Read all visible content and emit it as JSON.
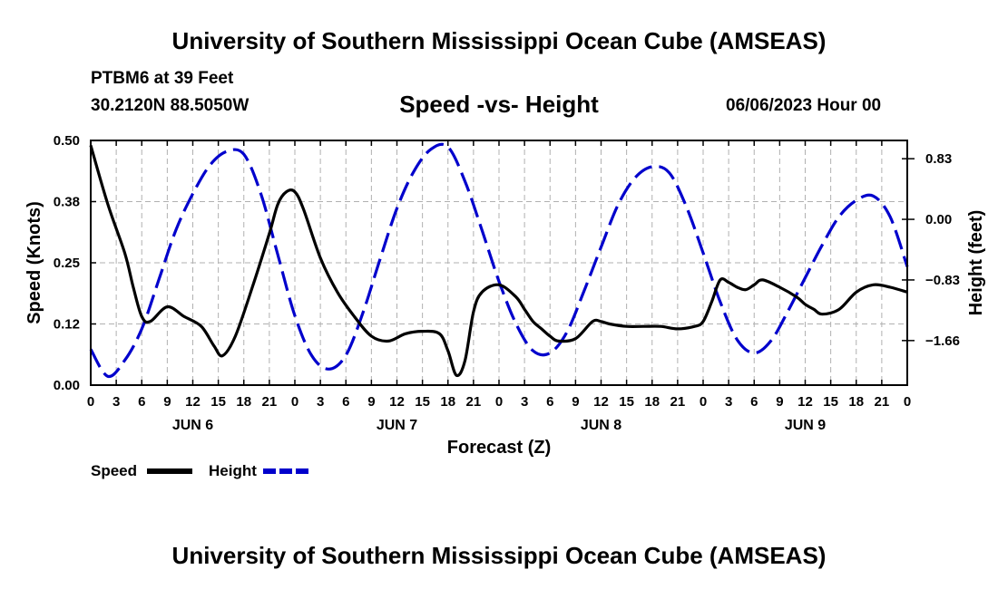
{
  "title": "University of Southern Mississippi Ocean Cube (AMSEAS)",
  "footer_title": "University of Southern Mississippi Ocean Cube (AMSEAS)",
  "station": "PTBM6 at 39 Feet",
  "coords": "30.2120N  88.5050W",
  "subtitle": "Speed -vs- Height",
  "datetime": "06/06/2023 Hour 00",
  "chart_data": {
    "type": "line",
    "title": "Speed -vs- Height",
    "xlabel": "Forecast (Z)",
    "ylabel": "Speed (Knots)",
    "y2label": "Height (feet)",
    "xlim": [
      0,
      96
    ],
    "ylim": [
      0,
      0.5
    ],
    "y2lim": [
      -2.27,
      1.08
    ],
    "x_ticks": [
      0,
      3,
      6,
      9,
      12,
      15,
      18,
      21,
      24,
      27,
      30,
      33,
      36,
      39,
      42,
      45,
      48,
      51,
      54,
      57,
      60,
      63,
      66,
      69,
      72,
      75,
      78,
      81,
      84,
      87,
      90,
      93,
      96
    ],
    "x_tick_labels": [
      "0",
      "3",
      "6",
      "9",
      "12",
      "15",
      "18",
      "21",
      "0",
      "3",
      "6",
      "9",
      "12",
      "15",
      "18",
      "21",
      "0",
      "3",
      "6",
      "9",
      "12",
      "15",
      "18",
      "21",
      "0",
      "3",
      "6",
      "9",
      "12",
      "15",
      "18",
      "21",
      "0"
    ],
    "y_ticks": [
      0,
      0.125,
      0.25,
      0.375,
      0.5
    ],
    "y_tick_labels": [
      "0.00",
      "0.12",
      "0.25",
      "0.38",
      "0.50"
    ],
    "y2_ticks": [
      -1.66,
      -0.83,
      0.0,
      0.83
    ],
    "y2_tick_labels": [
      "−1.66",
      "−0.83",
      "0.00",
      "0.83"
    ],
    "day_labels": [
      {
        "x": 12,
        "label": "JUN 6"
      },
      {
        "x": 36,
        "label": "JUN 7"
      },
      {
        "x": 60,
        "label": "JUN 8"
      },
      {
        "x": 84,
        "label": "JUN 9"
      }
    ],
    "series": [
      {
        "name": "Speed",
        "axis": "left",
        "color": "#000000",
        "style": "solid",
        "x": [
          0,
          2,
          4,
          5,
          6,
          7,
          9,
          11,
          13,
          14.5,
          15.5,
          17,
          19,
          21,
          22,
          23,
          24,
          25,
          27,
          29,
          31,
          33,
          35,
          37,
          39,
          41,
          42,
          43,
          44,
          45,
          46,
          48,
          50,
          51,
          52,
          53,
          54,
          55,
          57,
          59,
          60,
          61,
          63,
          65,
          67,
          69,
          71,
          72,
          73,
          74,
          75,
          76,
          77,
          78,
          79,
          81,
          83,
          84,
          85,
          86,
          88,
          90,
          92,
          94,
          96
        ],
        "values": [
          0.49,
          0.37,
          0.27,
          0.2,
          0.14,
          0.13,
          0.16,
          0.14,
          0.12,
          0.08,
          0.06,
          0.1,
          0.2,
          0.31,
          0.37,
          0.395,
          0.395,
          0.36,
          0.26,
          0.19,
          0.14,
          0.1,
          0.09,
          0.105,
          0.11,
          0.105,
          0.07,
          0.02,
          0.05,
          0.15,
          0.19,
          0.205,
          0.18,
          0.155,
          0.13,
          0.115,
          0.1,
          0.09,
          0.095,
          0.13,
          0.13,
          0.125,
          0.12,
          0.12,
          0.12,
          0.115,
          0.12,
          0.13,
          0.17,
          0.215,
          0.21,
          0.2,
          0.195,
          0.205,
          0.215,
          0.2,
          0.18,
          0.165,
          0.155,
          0.145,
          0.155,
          0.19,
          0.205,
          0.2,
          0.19
        ]
      },
      {
        "name": "Height",
        "axis": "right",
        "color": "#0000cc",
        "style": "dashed",
        "x": [
          0,
          2,
          4,
          6,
          8,
          10,
          12,
          14,
          16,
          18,
          20,
          22,
          24,
          26,
          28,
          30,
          32,
          34,
          36,
          38,
          40,
          42,
          44,
          46,
          48,
          50,
          52,
          54,
          56,
          58,
          60,
          62,
          64,
          66,
          68,
          70,
          72,
          74,
          76,
          78,
          80,
          82,
          84,
          86,
          88,
          90,
          92,
          94,
          96
        ],
        "values": [
          -1.78,
          -2.15,
          -1.93,
          -1.5,
          -0.83,
          -0.15,
          0.35,
          0.74,
          0.93,
          0.89,
          0.35,
          -0.49,
          -1.32,
          -1.87,
          -2.05,
          -1.86,
          -1.28,
          -0.55,
          0.15,
          0.66,
          0.96,
          0.99,
          0.52,
          -0.15,
          -0.85,
          -1.43,
          -1.8,
          -1.83,
          -1.54,
          -0.98,
          -0.38,
          0.2,
          0.57,
          0.72,
          0.64,
          0.18,
          -0.46,
          -1.13,
          -1.65,
          -1.83,
          -1.66,
          -1.25,
          -0.8,
          -0.35,
          0.04,
          0.26,
          0.32,
          0.03,
          -0.65
        ]
      }
    ],
    "legend": [
      "Speed",
      "Height"
    ],
    "legend_position": "bottom-left",
    "grid": true
  }
}
